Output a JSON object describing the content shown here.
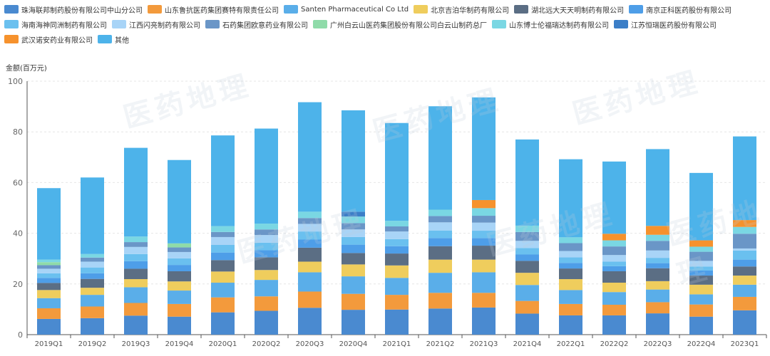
{
  "watermark": "医药地理",
  "chart_data": {
    "type": "bar",
    "stacked": true,
    "ylabel": "金额(百万元)",
    "ylim": [
      0,
      100
    ],
    "yticks": [
      0,
      20,
      40,
      60,
      80,
      100
    ],
    "legend_position": "top",
    "categories": [
      "2019Q1",
      "2019Q2",
      "2019Q3",
      "2019Q4",
      "2020Q1",
      "2020Q2",
      "2020Q3",
      "2020Q4",
      "2021Q1",
      "2021Q2",
      "2021Q3",
      "2021Q4",
      "2022Q1",
      "2022Q2",
      "2022Q3",
      "2022Q4",
      "2023Q1"
    ],
    "series": [
      {
        "name": "珠海联邦制药股份有限公司中山分公司",
        "color": "#4a8ad0",
        "values": [
          6.2,
          6.5,
          7.5,
          7.1,
          8.8,
          9.4,
          10.6,
          9.8,
          9.9,
          10.3,
          10.7,
          8.3,
          7.6,
          7.6,
          8.4,
          7.1,
          9.6
        ]
      },
      {
        "name": "山东鲁抗医药集团赛特有限责任公司",
        "color": "#f39a3c",
        "values": [
          4.2,
          4.6,
          5.0,
          5.0,
          5.9,
          5.7,
          6.4,
          6.3,
          5.8,
          6.2,
          5.8,
          5.0,
          4.5,
          4.2,
          4.4,
          4.8,
          5.3
        ]
      },
      {
        "name": "Santen Pharmaceutical Co Ltd",
        "color": "#5aaee9",
        "values": [
          4.0,
          4.6,
          6.2,
          5.3,
          5.8,
          6.5,
          7.6,
          6.9,
          6.7,
          7.9,
          8.1,
          6.3,
          5.5,
          5.0,
          5.0,
          4.0,
          4.8
        ]
      },
      {
        "name": "北京吉泊华制药有限公司",
        "color": "#efcd5d",
        "values": [
          3.2,
          2.8,
          3.2,
          3.6,
          4.4,
          3.9,
          4.2,
          4.7,
          4.9,
          5.2,
          5.0,
          4.8,
          4.3,
          3.7,
          3.3,
          3.8,
          3.6
        ]
      },
      {
        "name": "湖北远大天天明制药有限公司",
        "color": "#5b6e84",
        "values": [
          2.8,
          3.5,
          4.1,
          4.0,
          4.5,
          5.0,
          5.5,
          4.5,
          4.7,
          5.3,
          5.5,
          4.7,
          4.2,
          4.5,
          5.1,
          3.6,
          3.6
        ]
      },
      {
        "name": "南京正科医药股份有限公司",
        "color": "#4e9ee8",
        "values": [
          2.0,
          2.2,
          3.0,
          2.5,
          3.0,
          2.8,
          3.2,
          3.3,
          2.9,
          3.2,
          3.0,
          2.5,
          2.2,
          2.0,
          2.0,
          2.0,
          2.7
        ]
      },
      {
        "name": "海南海神同洲制药有限公司",
        "color": "#6ac0ef",
        "values": [
          1.8,
          2.3,
          2.8,
          2.6,
          3.0,
          3.0,
          3.2,
          3.0,
          2.8,
          3.0,
          2.9,
          2.6,
          2.2,
          1.8,
          2.1,
          1.6,
          3.6
        ]
      },
      {
        "name": "江西闪亮制药有限公司",
        "color": "#a8d4f7",
        "values": [
          1.8,
          2.3,
          2.8,
          2.5,
          3.1,
          3.0,
          3.0,
          3.0,
          3.0,
          3.2,
          3.2,
          2.8,
          2.5,
          2.6,
          2.9,
          2.2,
          0.8
        ]
      },
      {
        "name": "石药集团欧意药业有限公司",
        "color": "#6a96c7",
        "values": [
          1.4,
          1.6,
          1.9,
          1.8,
          2.0,
          2.2,
          2.3,
          2.5,
          2.0,
          2.5,
          2.7,
          3.5,
          3.1,
          3.4,
          3.8,
          3.6,
          5.8
        ]
      },
      {
        "name": "广州白云山医药集团股份有限公司白云山制药总厂",
        "color": "#8fdba9",
        "values": [
          1.2,
          0.0,
          0.0,
          1.6,
          0.0,
          0.0,
          0.0,
          0.0,
          0.0,
          0.0,
          0.0,
          0.0,
          0.0,
          0.0,
          0.0,
          0.0,
          0.0
        ]
      },
      {
        "name": "山东博士伦福瑞达制药有限公司",
        "color": "#7ad7e3",
        "values": [
          1.0,
          1.4,
          2.2,
          0.0,
          2.3,
          2.3,
          2.5,
          2.6,
          2.2,
          2.5,
          3.0,
          2.5,
          2.3,
          2.4,
          2.4,
          2.0,
          2.7
        ]
      },
      {
        "name": "江苏恒瑞医药股份有限公司",
        "color": "#3b7ec7",
        "values": [
          0.0,
          0.0,
          0.0,
          0.0,
          0.0,
          0.0,
          0.0,
          1.9,
          0.0,
          0.0,
          0.0,
          0.0,
          0.0,
          0.0,
          0.0,
          0.0,
          0.0
        ]
      },
      {
        "name": "武汉诺安药业有限公司",
        "color": "#f6922d",
        "values": [
          0.0,
          0.0,
          0.0,
          0.0,
          0.0,
          0.0,
          0.0,
          0.0,
          0.0,
          0.0,
          3.2,
          0.0,
          0.0,
          2.6,
          3.5,
          2.5,
          2.7
        ]
      },
      {
        "name": "其他",
        "color": "#4db3ea",
        "values": [
          28.2,
          30.2,
          35.0,
          32.9,
          35.8,
          37.5,
          43.2,
          40.0,
          38.6,
          40.8,
          40.5,
          34.0,
          30.8,
          28.5,
          30.3,
          26.6,
          33.0
        ]
      }
    ]
  }
}
